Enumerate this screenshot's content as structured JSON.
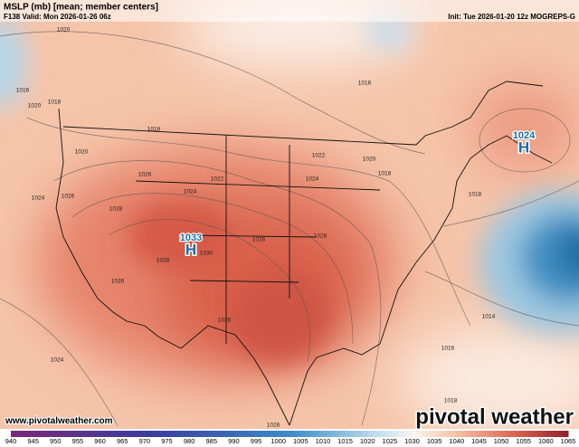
{
  "header": {
    "title": "MSLP (mb) [mean; member centers]",
    "valid": "F138 Valid: Mon 2026-01-26 06z",
    "init": "Init: Tue 2026-01-20 12z MOGREPS-G"
  },
  "map": {
    "contour_labels": [
      "1020",
      "1016",
      "1020",
      "1018",
      "1020",
      "1018",
      "1024",
      "1026",
      "1026",
      "1028",
      "1024",
      "1022",
      "1024",
      "1022",
      "1020",
      "1018",
      "1026",
      "1028",
      "1028",
      "1030",
      "1026",
      "1028",
      "1024",
      "1016",
      "1018",
      "1014",
      "1016",
      "1018",
      "1026"
    ],
    "centers": [
      {
        "value": "1033",
        "symbol": "H"
      },
      {
        "value": "1024",
        "symbol": "H"
      }
    ]
  },
  "footer": {
    "url": "www.pivotalweather.com",
    "brand": "pivotal weather"
  },
  "colorbar": {
    "ticks": [
      940,
      945,
      950,
      955,
      960,
      965,
      970,
      975,
      980,
      985,
      990,
      995,
      1000,
      1005,
      1010,
      1015,
      1020,
      1025,
      1030,
      1035,
      1040,
      1045,
      1050,
      1055,
      1060,
      1065
    ]
  }
}
